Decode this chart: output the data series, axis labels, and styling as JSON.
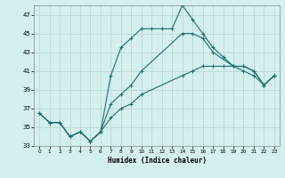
{
  "xlabel": "Humidex (Indice chaleur)",
  "xlim": [
    -0.5,
    23.5
  ],
  "ylim": [
    33,
    48
  ],
  "yticks": [
    33,
    35,
    37,
    39,
    41,
    43,
    45,
    47
  ],
  "xticks": [
    0,
    1,
    2,
    3,
    4,
    5,
    6,
    7,
    8,
    9,
    10,
    11,
    12,
    13,
    14,
    15,
    16,
    17,
    18,
    19,
    20,
    21,
    22,
    23
  ],
  "bg_color": "#d5efef",
  "line_color": "#1a7070",
  "grid_color": "#b8d8d8",
  "line1_x": [
    0,
    1,
    2,
    3,
    4,
    5,
    6,
    7,
    8,
    9,
    10,
    11,
    12,
    13,
    14,
    15,
    16,
    17,
    18,
    19,
    20,
    21,
    22,
    23
  ],
  "line1_y": [
    36.5,
    35.5,
    35.5,
    34.0,
    34.5,
    33.5,
    34.5,
    40.5,
    43.5,
    44.5,
    45.5,
    45.5,
    45.5,
    45.5,
    48.0,
    46.5,
    45.0,
    43.5,
    42.5,
    41.5,
    41.5,
    41.0,
    39.5,
    40.5
  ],
  "line2_x": [
    0,
    1,
    2,
    3,
    4,
    5,
    6,
    7,
    8,
    9,
    10,
    14,
    15,
    16,
    17,
    19,
    20,
    21,
    22,
    23
  ],
  "line2_y": [
    36.5,
    35.5,
    35.5,
    34.0,
    34.5,
    33.5,
    34.5,
    37.5,
    38.5,
    39.5,
    41.0,
    45.0,
    45.0,
    44.5,
    43.0,
    41.5,
    41.5,
    41.0,
    39.5,
    40.5
  ],
  "line3_x": [
    0,
    1,
    2,
    3,
    4,
    5,
    6,
    7,
    8,
    9,
    10,
    14,
    15,
    16,
    17,
    18,
    19,
    20,
    21,
    22,
    23
  ],
  "line3_y": [
    36.5,
    35.5,
    35.5,
    34.0,
    34.5,
    33.5,
    34.5,
    36.0,
    37.0,
    37.5,
    38.5,
    40.5,
    41.0,
    41.5,
    41.5,
    41.5,
    41.5,
    41.0,
    40.5,
    39.5,
    40.5
  ]
}
